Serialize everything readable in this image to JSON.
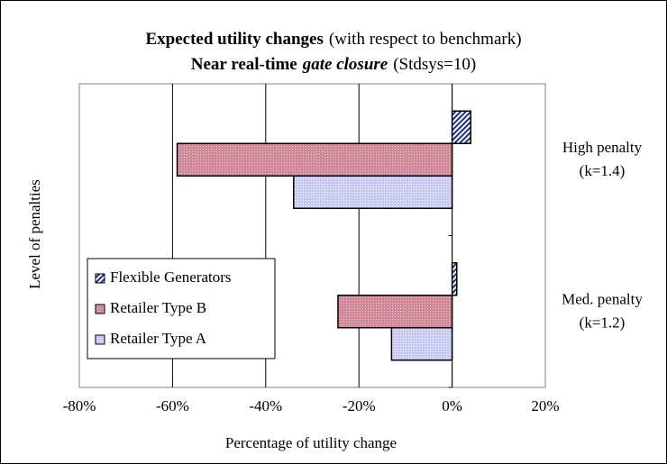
{
  "chart_data": {
    "type": "hbar",
    "title_lines": [
      [
        {
          "text": "Expected utility changes",
          "style": "bold"
        },
        {
          "text": "(with respect to benchmark)",
          "style": "normal"
        }
      ],
      [
        {
          "text": "Near real-time",
          "style": "bold"
        },
        {
          "text": "gate closure",
          "style": "bold-italic"
        },
        {
          "text": "(Stdsys=10)",
          "style": "normal"
        }
      ]
    ],
    "x_label": "Percentage of utility change",
    "y_label": "Level of penalties",
    "categories": [
      [
        "Med. penalty",
        "(k=1.2)"
      ],
      [
        "High penalty",
        "(k=1.4)"
      ]
    ],
    "series": [
      {
        "name": "Flexible Generators",
        "color": "#1f2f80",
        "values": [
          1,
          4
        ]
      },
      {
        "name": "Retailer Type B",
        "color": "#d08898",
        "values": [
          -24.5,
          -59
        ]
      },
      {
        "name": "Retailer Type A",
        "color": "#c8c8f4",
        "values": [
          -13,
          -34
        ]
      }
    ],
    "xlim": [
      -80,
      20
    ],
    "xticks": [
      {
        "value": -80,
        "label": "-80%"
      },
      {
        "value": -60,
        "label": "-60%"
      },
      {
        "value": -40,
        "label": "-40%"
      },
      {
        "value": -20,
        "label": "-20%"
      },
      {
        "value": 0,
        "label": "0%"
      },
      {
        "value": 20,
        "label": "20%"
      }
    ],
    "grid": true,
    "legend": "lower-left"
  }
}
